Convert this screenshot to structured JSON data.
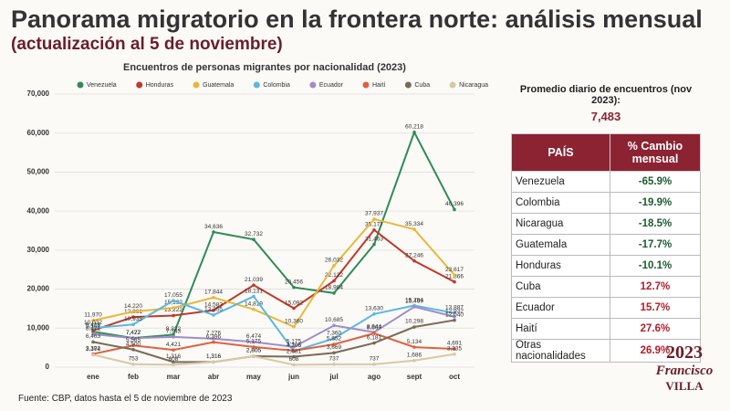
{
  "title": "Panorama migratorio en la frontera norte: análisis mensual",
  "subtitle": "(actualización al 5 de noviembre)",
  "average": {
    "label": "Promedio diario de encuentros (nov 2023):",
    "value": "7,483"
  },
  "table": {
    "header": [
      "PAÍS",
      "% Cambio mensual"
    ],
    "rows": [
      [
        "Venezuela",
        "-65.9%"
      ],
      [
        "Colombia",
        "-19.9%"
      ],
      [
        "Nicaragua",
        "-18.5%"
      ],
      [
        "Guatemala",
        "-17.7%"
      ],
      [
        "Honduras",
        "-10.1%"
      ],
      [
        "Cuba",
        "12.7%"
      ],
      [
        "Ecuador",
        "15.7%"
      ],
      [
        "Haití",
        "27.6%"
      ],
      [
        "Otras nacionalidades",
        "26.9%"
      ]
    ]
  },
  "source": "Fuente: CBP, datos hasta el 5 de noviembre de 2023",
  "logo": [
    "2023",
    "Francisco",
    "VILLA"
  ],
  "chart_data": {
    "type": "line",
    "title": "Encuentros de personas migrantes por nacionalidad (2023)",
    "categories": [
      "ene",
      "feb",
      "mar",
      "abr",
      "may",
      "jun",
      "jul",
      "ago",
      "sept",
      "oct"
    ],
    "ylim": [
      0,
      70000
    ],
    "yticks": [
      0,
      {
        "value": 10000,
        "label": "10,000"
      },
      {
        "value": 20000,
        "label": "20,000"
      },
      {
        "value": 30000,
        "label": "30,000"
      },
      {
        "value": 40000,
        "label": "40,000"
      },
      {
        "value": 50000,
        "label": "50,000"
      },
      {
        "value": 60000,
        "label": "60,000"
      },
      {
        "value": 70000,
        "label": "70,000"
      }
    ],
    "grid": true,
    "legend": "top",
    "series": [
      {
        "name": "Venezuela",
        "color": "#2e8b57",
        "values": [
          9101,
          7472,
          8322,
          34636,
          32732,
          20456,
          18984,
          31463,
          60218,
          40396
        ],
        "value_labels": [
          "9,101",
          "7,472",
          "8,322",
          "34,636",
          "32,732",
          "20,456",
          "18,984",
          "31,463",
          "60,218",
          "40,396"
        ]
      },
      {
        "name": "Honduras",
        "color": "#c0392b",
        "values": [
          9418,
          12861,
          13222,
          14583,
          21039,
          15092,
          22122,
          35177,
          27246,
          21866
        ],
        "value_labels": [
          "9,418",
          "12,861",
          "13,222",
          "14,583",
          "21,039",
          "15,092",
          "22,122",
          "35,177",
          "27,246",
          "21,866"
        ]
      },
      {
        "name": "Guatemala",
        "color": "#e8b83a",
        "values": [
          11970,
          14220,
          15192,
          17844,
          14819,
          10360,
          26032,
          37937,
          35334,
          23617
        ],
        "value_labels": [
          "11,970",
          "14,220",
          "15,192",
          "17,844",
          "14,819",
          "10,360",
          "26,032",
          "37,937",
          "35,334",
          "23,617"
        ]
      },
      {
        "name": "Colombia",
        "color": "#5bb8e0",
        "values": [
          10032,
          10935,
          17055,
          13355,
          18131,
          4105,
          7360,
          13630,
          15794,
          13887
        ],
        "value_labels": [
          "10,032",
          "10,935",
          "17,055",
          "13,355",
          "18,131",
          "4,105",
          "7,360",
          "13,630",
          "15,794",
          "13,887"
        ]
      },
      {
        "name": "Ecuador",
        "color": "#a08cc8",
        "values": [
          8471,
          7427,
          7743,
          7276,
          6474,
          5175,
          10685,
          8944,
          15469,
          12932
        ],
        "value_labels": [
          "8,471",
          "7,427",
          "7,743",
          "7,276",
          "6,474",
          "5,175",
          "10,685",
          "8,944",
          "15,469",
          "12,932"
        ]
      },
      {
        "name": "Haití",
        "color": "#e06040",
        "values": [
          3382,
          5565,
          4421,
          6396,
          5175,
          4206,
          5852,
          8667,
          5134,
          4691
        ],
        "value_labels": [
          "3,382",
          "5,565",
          "4,421",
          "6,396",
          "5,175",
          "4,206",
          "5,852",
          "8,667",
          "5,134",
          "4,691"
        ]
      },
      {
        "name": "Cuba",
        "color": "#7a6a5a",
        "values": [
          6463,
          4500,
          1316,
          1316,
          2805,
          2681,
          3669,
          6181,
          10298,
          12040
        ],
        "value_labels": [
          "6,463",
          "4,500",
          "1,316",
          "1,316",
          "2,805",
          "2,681",
          "3,669",
          "6,181",
          "10,298",
          "12,040"
        ]
      },
      {
        "name": "Nicaragua",
        "color": "#d8c8a8",
        "values": [
          3174,
          753,
          608,
          1316,
          2805,
          608,
          737,
          737,
          1686,
          3335
        ],
        "value_labels": [
          "3,174",
          "753",
          "608",
          "1,316",
          "2,805",
          "608",
          "737",
          "737",
          "1,686",
          "3,335"
        ]
      }
    ]
  }
}
